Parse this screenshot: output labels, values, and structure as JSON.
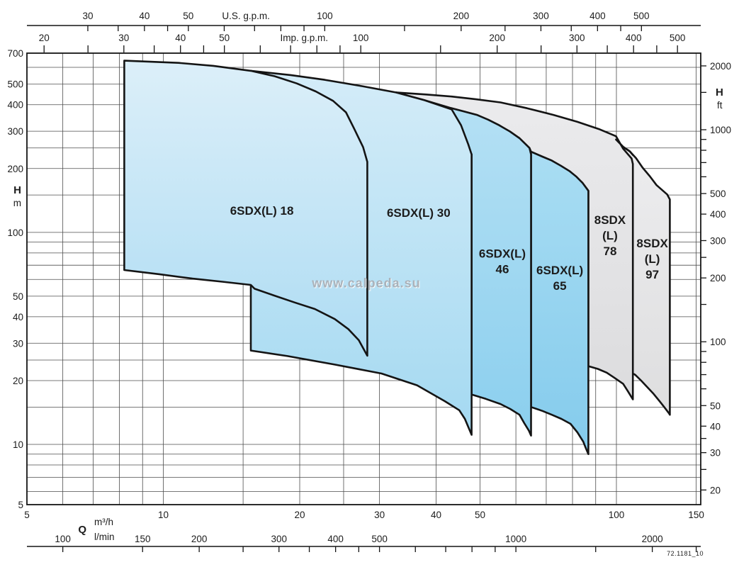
{
  "watermark": "www.calpeda.su",
  "figure_code": "72.1181_10",
  "chart_data": {
    "type": "area",
    "description": "Submersible pump family operating-range chart, head H versus flow Q on log-log scales",
    "axes": {
      "x_top_us": {
        "title": "U.S. g.p.m.",
        "gpm_per_m3h": 4.40287,
        "labeled_ticks": [
          30,
          40,
          50,
          100,
          200,
          300,
          400,
          500
        ],
        "minor_ticks": [
          35,
          45,
          60,
          70,
          80,
          90,
          150,
          250,
          350,
          450
        ],
        "title_at_value": 67
      },
      "x_top_imp": {
        "title": "Imp. g.p.m.",
        "gpm_per_m3h": 3.66615,
        "labeled_ticks": [
          20,
          30,
          40,
          50,
          100,
          200,
          300,
          400,
          500
        ],
        "minor_ticks": [
          25,
          35,
          45,
          60,
          70,
          80,
          90,
          150,
          250,
          350,
          450
        ],
        "title_at_value": 75
      },
      "x_bottom_m3h": {
        "title": "m³/h",
        "labeled_ticks": [
          5,
          10,
          20,
          30,
          40,
          50,
          100,
          150
        ],
        "range": [
          5,
          153.5
        ]
      },
      "x_bottom_lmin": {
        "title": "l/min",
        "m3h_per_unit": 0.06,
        "labeled_ticks": [
          100,
          150,
          200,
          300,
          400,
          500,
          1000,
          2000
        ],
        "minor_ticks": [
          250,
          350,
          450,
          600,
          700,
          800,
          900,
          1500,
          2500
        ]
      },
      "x_quantity_label": "Q",
      "y_left": {
        "title": "H",
        "unit": "m",
        "labeled_ticks": [
          700,
          500,
          400,
          300,
          200,
          100,
          50,
          40,
          30,
          20,
          10,
          5
        ],
        "range": [
          5.2,
          700
        ]
      },
      "y_right": {
        "title": "H",
        "unit": "ft",
        "m_per_ft": 0.3048,
        "labeled_ticks": [
          2000,
          1000,
          500,
          400,
          300,
          200,
          100,
          50,
          40,
          30,
          20
        ],
        "minor_ticks": [
          1500,
          900,
          800,
          700,
          600,
          250,
          150,
          90,
          80,
          70,
          60,
          35,
          25
        ]
      }
    },
    "grid": {
      "x_m3h": [
        6,
        7,
        8,
        9,
        10,
        15,
        20,
        25,
        30,
        40,
        50,
        60,
        70,
        80,
        90,
        100,
        150
      ],
      "y_m": [
        6,
        7,
        8,
        9,
        10,
        15,
        20,
        25,
        30,
        40,
        50,
        60,
        70,
        80,
        90,
        100,
        150,
        200,
        250,
        300,
        400,
        500,
        600
      ]
    },
    "envelopes": [
      {
        "name": "8SDX(L) 97",
        "label_lines": [
          "8SDX",
          "(L)",
          "97"
        ],
        "label_pos": [
          120,
          75
        ],
        "fill_top": "#ededef",
        "fill_bottom": "#dededf",
        "points": [
          [
            99.8,
            274
          ],
          [
            103.5,
            253
          ],
          [
            107,
            241
          ],
          [
            110.5,
            224
          ],
          [
            114.2,
            202
          ],
          [
            118.5,
            184
          ],
          [
            122.6,
            167
          ],
          [
            129.4,
            151
          ],
          [
            131.2,
            143
          ],
          [
            131.2,
            13.8
          ],
          [
            130.7,
            14.0
          ],
          [
            127.8,
            14.9
          ],
          [
            124.8,
            15.9
          ],
          [
            120.8,
            17.3
          ],
          [
            116.8,
            18.7
          ],
          [
            113.4,
            20.0
          ],
          [
            110.0,
            21.3
          ],
          [
            108.7,
            21.6
          ],
          [
            108.7,
            210
          ]
        ]
      },
      {
        "name": "8SDX(L) 78",
        "label_lines": [
          "8SDX",
          "(L)",
          "78"
        ],
        "label_pos": [
          96.8,
          97
        ],
        "fill_top": "#ebebed",
        "fill_bottom": "#dcdcde",
        "points": [
          [
            32.6,
            457
          ],
          [
            38.0,
            447
          ],
          [
            43.3,
            437
          ],
          [
            49.0,
            424
          ],
          [
            55.5,
            410
          ],
          [
            63.5,
            385
          ],
          [
            72.6,
            358
          ],
          [
            82.0,
            332
          ],
          [
            91.5,
            307
          ],
          [
            99.8,
            284
          ],
          [
            103.5,
            248
          ],
          [
            108.0,
            223
          ],
          [
            108.7,
            210
          ],
          [
            108.7,
            16.3
          ],
          [
            106.0,
            17.8
          ],
          [
            103.5,
            19.3
          ],
          [
            99.0,
            20.6
          ],
          [
            95.2,
            21.8
          ],
          [
            91.0,
            22.7
          ],
          [
            86.7,
            23.4
          ],
          [
            86.7,
            157
          ],
          [
            84.2,
            171
          ],
          [
            78.9,
            194
          ],
          [
            72.0,
            218
          ],
          [
            64.8,
            240
          ],
          [
            64.3,
            250
          ],
          [
            61.1,
            278
          ],
          [
            55.1,
            320
          ],
          [
            49.2,
            358
          ],
          [
            43.0,
            386
          ],
          [
            37.7,
            420
          ]
        ]
      },
      {
        "name": "6SDX(L) 65",
        "label_lines": [
          "6SDX(L)",
          "65"
        ],
        "label_pos": [
          75,
          61
        ],
        "fill_top": "#a9ddf3",
        "fill_bottom": "#84cbec",
        "points": [
          [
            64.8,
            240
          ],
          [
            68.5,
            228
          ],
          [
            72.0,
            218
          ],
          [
            75.4,
            206
          ],
          [
            78.9,
            194
          ],
          [
            81.6,
            183
          ],
          [
            84.2,
            171
          ],
          [
            86.7,
            157
          ],
          [
            86.7,
            9.0
          ],
          [
            85.6,
            9.6
          ],
          [
            84.5,
            10.3
          ],
          [
            82.0,
            11.4
          ],
          [
            79.2,
            12.5
          ],
          [
            75.6,
            13.2
          ],
          [
            72.0,
            13.8
          ],
          [
            68.6,
            14.4
          ],
          [
            64.8,
            15.0
          ]
        ]
      },
      {
        "name": "6SDX(L) 46",
        "label_lines": [
          "6SDX(L)",
          "46"
        ],
        "label_pos": [
          56,
          73
        ],
        "fill_top": "#b4e0f4",
        "fill_bottom": "#8bcfee",
        "points": [
          [
            43.0,
            386
          ],
          [
            46.0,
            372
          ],
          [
            49.2,
            358
          ],
          [
            52.1,
            340
          ],
          [
            55.1,
            320
          ],
          [
            58.2,
            299
          ],
          [
            61.1,
            278
          ],
          [
            64.3,
            250
          ],
          [
            64.8,
            233
          ],
          [
            64.8,
            11.0
          ],
          [
            64.1,
            11.6
          ],
          [
            62.6,
            12.6
          ],
          [
            61.1,
            13.8
          ],
          [
            58.3,
            14.7
          ],
          [
            55.5,
            15.5
          ],
          [
            51.5,
            16.4
          ],
          [
            47.9,
            17.2
          ],
          [
            47.9,
            233
          ]
        ]
      },
      {
        "name": "6SDX(L) 30",
        "label_lines": [
          "6SDX(L) 30"
        ],
        "label_pos": [
          36.6,
          124
        ],
        "fill_top": "#d4ecf8",
        "fill_bottom": "#a4d9f1",
        "points": [
          [
            15.6,
            578
          ],
          [
            19.1,
            552
          ],
          [
            22.7,
            524
          ],
          [
            27.5,
            489
          ],
          [
            32.6,
            457
          ],
          [
            37.7,
            420
          ],
          [
            43.3,
            380
          ],
          [
            45.4,
            320
          ],
          [
            47.1,
            260
          ],
          [
            47.9,
            233
          ],
          [
            47.9,
            11.1
          ],
          [
            46.3,
            13.2
          ],
          [
            45.0,
            14.5
          ],
          [
            41.8,
            16.0
          ],
          [
            36.3,
            19.0
          ],
          [
            30.3,
            21.6
          ],
          [
            23.9,
            23.8
          ],
          [
            18.8,
            26.1
          ],
          [
            15.6,
            27.7
          ]
        ]
      },
      {
        "name": "6SDX(L) 18",
        "label_lines": [
          "6SDX(L) 18"
        ],
        "label_pos": [
          16.5,
          127
        ],
        "fill_top": "#dceff9",
        "fill_bottom": "#aedcf3",
        "points": [
          [
            8.2,
            645
          ],
          [
            10.8,
            630
          ],
          [
            12.9,
            610
          ],
          [
            15.6,
            578
          ],
          [
            17.6,
            545
          ],
          [
            19.7,
            504
          ],
          [
            21.7,
            462
          ],
          [
            23.7,
            417
          ],
          [
            25.3,
            368
          ],
          [
            26.4,
            307
          ],
          [
            27.6,
            252
          ],
          [
            28.2,
            215
          ],
          [
            28.2,
            26.2
          ],
          [
            27.0,
            31
          ],
          [
            25.6,
            35
          ],
          [
            23.9,
            39
          ],
          [
            21.6,
            43.5
          ],
          [
            19.5,
            46.7
          ],
          [
            17.5,
            50.5
          ],
          [
            15.9,
            54.2
          ],
          [
            15.6,
            56.5
          ],
          [
            13.5,
            58.5
          ],
          [
            11.6,
            60.5
          ],
          [
            9.8,
            63.5
          ],
          [
            8.2,
            66.4
          ]
        ]
      }
    ],
    "overlay_strokes": [
      {
        "name": "97-top-curve-over-78",
        "points": [
          [
            99.8,
            274
          ],
          [
            103.5,
            253
          ],
          [
            107,
            241
          ],
          [
            108.9,
            231
          ]
        ]
      }
    ],
    "style": {
      "grid_color": "#4d4d4d",
      "frame_color": "#141414",
      "curve_color": "#141414",
      "axis_color": "#141414",
      "label_color": "#111111"
    }
  }
}
